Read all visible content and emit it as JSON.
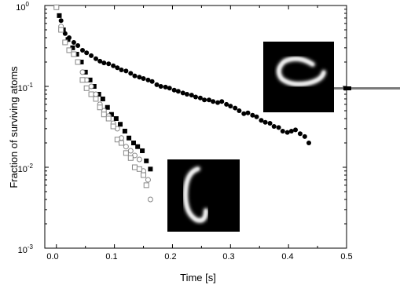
{
  "chart_data": {
    "type": "scatter",
    "xlabel": "Time [s]",
    "ylabel": "Fraction of surviving atoms",
    "xlim": [
      -0.02,
      0.5
    ],
    "ylim": [
      0.001,
      1
    ],
    "yscale": "log",
    "x_ticks": [
      "0.0",
      "0.1",
      "0.2",
      "0.3",
      "0.4",
      "0.5"
    ],
    "y_ticks": [
      {
        "base": "10",
        "exp": "0"
      },
      {
        "base": "10",
        "exp": "-1"
      },
      {
        "base": "10",
        "exp": "-2"
      },
      {
        "base": "10",
        "exp": "-3"
      }
    ],
    "grid": false,
    "series": [
      {
        "marker": "filled-circle",
        "color": "#000000",
        "points": [
          [
            0.0,
            0.95
          ],
          [
            0.008,
            0.65
          ],
          [
            0.015,
            0.45
          ],
          [
            0.022,
            0.4
          ],
          [
            0.03,
            0.35
          ],
          [
            0.037,
            0.32
          ],
          [
            0.045,
            0.28
          ],
          [
            0.052,
            0.26
          ],
          [
            0.06,
            0.24
          ],
          [
            0.068,
            0.22
          ],
          [
            0.075,
            0.205
          ],
          [
            0.082,
            0.195
          ],
          [
            0.09,
            0.19
          ],
          [
            0.098,
            0.18
          ],
          [
            0.105,
            0.17
          ],
          [
            0.112,
            0.16
          ],
          [
            0.12,
            0.155
          ],
          [
            0.128,
            0.145
          ],
          [
            0.135,
            0.135
          ],
          [
            0.143,
            0.13
          ],
          [
            0.15,
            0.125
          ],
          [
            0.158,
            0.12
          ],
          [
            0.165,
            0.115
          ],
          [
            0.173,
            0.105
          ],
          [
            0.18,
            0.1
          ],
          [
            0.188,
            0.098
          ],
          [
            0.195,
            0.095
          ],
          [
            0.203,
            0.09
          ],
          [
            0.21,
            0.087
          ],
          [
            0.218,
            0.083
          ],
          [
            0.225,
            0.08
          ],
          [
            0.233,
            0.078
          ],
          [
            0.24,
            0.074
          ],
          [
            0.248,
            0.072
          ],
          [
            0.255,
            0.068
          ],
          [
            0.263,
            0.068
          ],
          [
            0.27,
            0.065
          ],
          [
            0.278,
            0.063
          ],
          [
            0.285,
            0.065
          ],
          [
            0.293,
            0.06
          ],
          [
            0.3,
            0.057
          ],
          [
            0.308,
            0.054
          ],
          [
            0.315,
            0.05
          ],
          [
            0.323,
            0.046
          ],
          [
            0.33,
            0.047
          ],
          [
            0.338,
            0.044
          ],
          [
            0.345,
            0.042
          ],
          [
            0.353,
            0.038
          ],
          [
            0.36,
            0.036
          ],
          [
            0.368,
            0.035
          ],
          [
            0.375,
            0.032
          ],
          [
            0.383,
            0.031
          ],
          [
            0.39,
            0.028
          ],
          [
            0.398,
            0.027
          ],
          [
            0.405,
            0.028
          ],
          [
            0.412,
            0.029
          ],
          [
            0.42,
            0.026
          ],
          [
            0.428,
            0.024
          ],
          [
            0.435,
            0.02
          ]
        ]
      },
      {
        "marker": "filled-square",
        "color": "#000000",
        "points": [
          [
            0.005,
            0.75
          ],
          [
            0.012,
            0.5
          ],
          [
            0.02,
            0.38
          ],
          [
            0.028,
            0.3
          ],
          [
            0.035,
            0.25
          ],
          [
            0.043,
            0.2
          ],
          [
            0.05,
            0.15
          ],
          [
            0.058,
            0.12
          ],
          [
            0.065,
            0.1
          ],
          [
            0.073,
            0.08
          ],
          [
            0.08,
            0.07
          ],
          [
            0.088,
            0.055
          ],
          [
            0.095,
            0.045
          ],
          [
            0.103,
            0.04
          ],
          [
            0.11,
            0.034
          ],
          [
            0.118,
            0.028
          ],
          [
            0.125,
            0.023
          ],
          [
            0.133,
            0.02
          ],
          [
            0.14,
            0.018
          ],
          [
            0.148,
            0.016
          ],
          [
            0.155,
            0.012
          ],
          [
            0.162,
            0.0095
          ]
        ]
      },
      {
        "marker": "open-circle",
        "color": "#888888",
        "points": [
          [
            0.0,
            0.95
          ],
          [
            0.008,
            0.55
          ],
          [
            0.015,
            0.35
          ],
          [
            0.022,
            0.28
          ],
          [
            0.03,
            0.25
          ],
          [
            0.037,
            0.2
          ],
          [
            0.045,
            0.15
          ],
          [
            0.052,
            0.12
          ],
          [
            0.06,
            0.1
          ],
          [
            0.068,
            0.08
          ],
          [
            0.075,
            0.06
          ],
          [
            0.082,
            0.05
          ],
          [
            0.09,
            0.043
          ],
          [
            0.098,
            0.035
          ],
          [
            0.105,
            0.03
          ],
          [
            0.112,
            0.023
          ],
          [
            0.12,
            0.018
          ],
          [
            0.128,
            0.016
          ],
          [
            0.135,
            0.014
          ],
          [
            0.143,
            0.0125
          ],
          [
            0.15,
            0.009
          ],
          [
            0.158,
            0.007
          ],
          [
            0.162,
            0.004
          ]
        ]
      },
      {
        "marker": "open-square",
        "color": "#888888",
        "points": [
          [
            0.0,
            0.95
          ],
          [
            0.008,
            0.5
          ],
          [
            0.015,
            0.35
          ],
          [
            0.022,
            0.28
          ],
          [
            0.03,
            0.25
          ],
          [
            0.037,
            0.2
          ],
          [
            0.045,
            0.12
          ],
          [
            0.052,
            0.095
          ],
          [
            0.06,
            0.08
          ],
          [
            0.068,
            0.07
          ],
          [
            0.075,
            0.055
          ],
          [
            0.082,
            0.045
          ],
          [
            0.09,
            0.04
          ],
          [
            0.098,
            0.032
          ],
          [
            0.105,
            0.022
          ],
          [
            0.112,
            0.02
          ],
          [
            0.12,
            0.015
          ],
          [
            0.128,
            0.013
          ],
          [
            0.135,
            0.01
          ],
          [
            0.143,
            0.0095
          ],
          [
            0.15,
            0.008
          ],
          [
            0.155,
            0.006
          ]
        ]
      }
    ],
    "insets": [
      {
        "name": "open-ring-image",
        "shape": "horizontal open ring",
        "background": "#000000"
      },
      {
        "name": "tall-ring-image",
        "shape": "vertical open ring",
        "background": "#000000"
      }
    ]
  }
}
